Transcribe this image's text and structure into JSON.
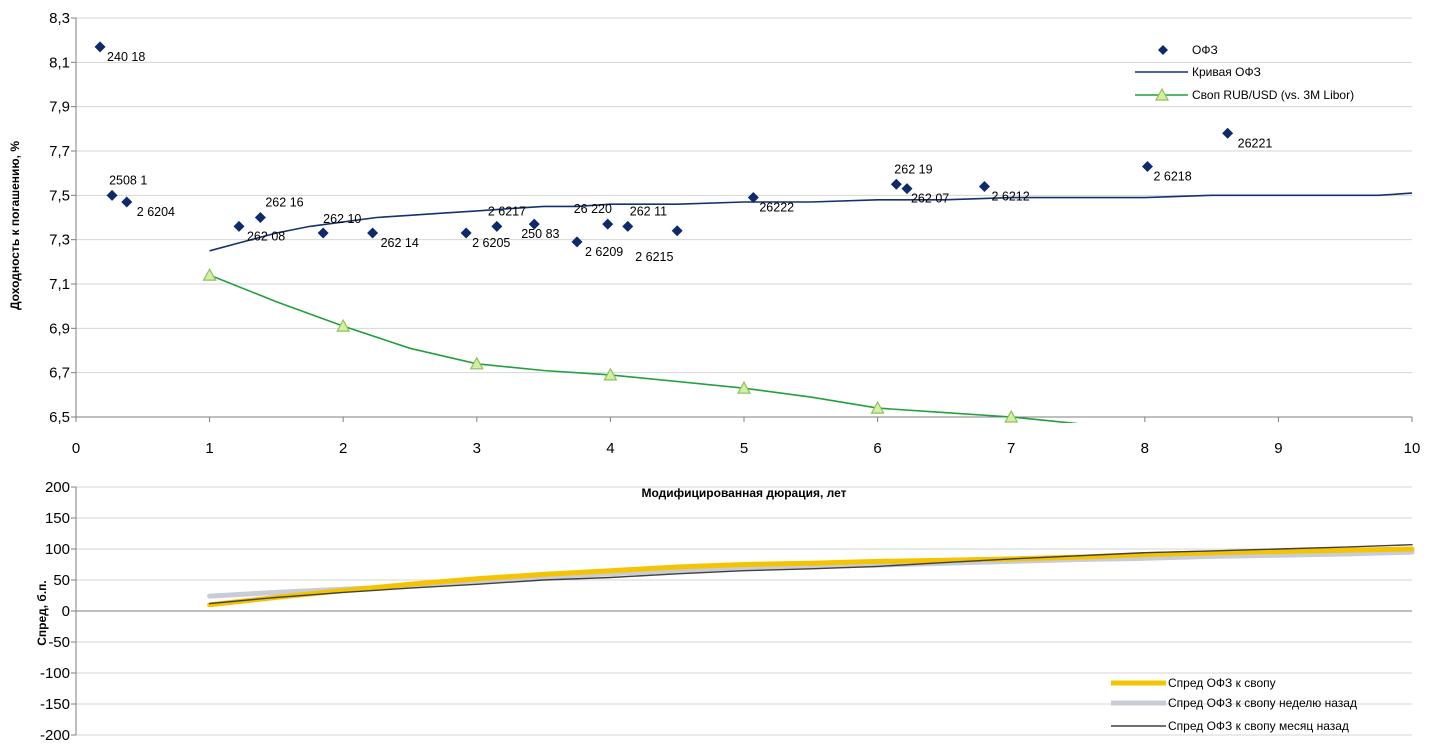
{
  "chart_data": [
    {
      "type": "scatter",
      "title": "",
      "xlabel": "Модифицированная дюрация, лет",
      "ylabel": "Доходность к погашению, %",
      "xlim": [
        0,
        10
      ],
      "ylim": [
        6.5,
        8.3
      ],
      "x_ticks": [
        "0",
        "1",
        "2",
        "3",
        "4",
        "5",
        "6",
        "7",
        "8",
        "9",
        "10"
      ],
      "y_ticks": [
        "6,5",
        "6,7",
        "6,9",
        "7,1",
        "7,3",
        "7,5",
        "7,7",
        "7,9",
        "8,1",
        "8,3"
      ],
      "grid": true,
      "legend_position": "top-right",
      "series": [
        {
          "name": "ОФЗ",
          "kind": "markers",
          "marker": "diamond",
          "color": "#0e2a6b",
          "points": [
            {
              "x": 0.18,
              "y": 8.17,
              "label": "240 18"
            },
            {
              "x": 0.27,
              "y": 7.5,
              "label": "2508 1"
            },
            {
              "x": 0.38,
              "y": 7.47,
              "label": "2 6204"
            },
            {
              "x": 1.22,
              "y": 7.36,
              "label": "262 08"
            },
            {
              "x": 1.38,
              "y": 7.4,
              "label": "262 16"
            },
            {
              "x": 1.85,
              "y": 7.33,
              "label": "262 10"
            },
            {
              "x": 2.22,
              "y": 7.33,
              "label": "262 14"
            },
            {
              "x": 2.92,
              "y": 7.33,
              "label": "2 6205"
            },
            {
              "x": 3.15,
              "y": 7.36,
              "label": "2 6217"
            },
            {
              "x": 3.43,
              "y": 7.37,
              "label": "250 83"
            },
            {
              "x": 3.75,
              "y": 7.29,
              "label": "2 6209"
            },
            {
              "x": 3.98,
              "y": 7.37,
              "label": "26 220"
            },
            {
              "x": 4.13,
              "y": 7.36,
              "label": "262 11"
            },
            {
              "x": 4.5,
              "y": 7.34,
              "label": "2 6215"
            },
            {
              "x": 5.07,
              "y": 7.49,
              "label": "26222"
            },
            {
              "x": 6.14,
              "y": 7.55,
              "label": "262 19"
            },
            {
              "x": 6.22,
              "y": 7.53,
              "label": "262 07"
            },
            {
              "x": 6.8,
              "y": 7.54,
              "label": "2 6212"
            },
            {
              "x": 8.02,
              "y": 7.63,
              "label": "2 6218"
            },
            {
              "x": 8.62,
              "y": 7.78,
              "label": "26221"
            }
          ]
        },
        {
          "name": "Кривая ОФЗ",
          "kind": "line",
          "color": "#17306e",
          "x": [
            1.0,
            1.25,
            1.5,
            1.75,
            2.0,
            2.25,
            2.5,
            2.75,
            3.0,
            3.25,
            3.5,
            3.75,
            4.0,
            4.5,
            5.0,
            5.5,
            6.0,
            6.5,
            7.0,
            7.5,
            8.0,
            8.5,
            9.0,
            9.5,
            9.75,
            10.0
          ],
          "y": [
            7.25,
            7.29,
            7.33,
            7.36,
            7.38,
            7.4,
            7.41,
            7.42,
            7.43,
            7.44,
            7.45,
            7.45,
            7.46,
            7.46,
            7.47,
            7.47,
            7.48,
            7.48,
            7.49,
            7.49,
            7.49,
            7.5,
            7.5,
            7.5,
            7.5,
            7.51
          ]
        },
        {
          "name": "Своп RUB/USD (vs. 3M Libor)",
          "kind": "line",
          "color": "#21a03c",
          "marker": "triangle",
          "marker_fill": "#d6eea0",
          "x": [
            1.0,
            1.5,
            2.0,
            2.5,
            3.0,
            3.5,
            4.0,
            4.5,
            5.0,
            5.5,
            6.0,
            6.5,
            7.0,
            7.5
          ],
          "y": [
            7.14,
            7.02,
            6.91,
            6.81,
            6.74,
            6.71,
            6.69,
            6.66,
            6.63,
            6.59,
            6.54,
            6.52,
            6.5,
            6.47
          ],
          "marker_x": [
            1,
            2,
            3,
            4,
            5,
            6,
            7
          ]
        }
      ]
    },
    {
      "type": "line",
      "title": "",
      "xlabel": "",
      "ylabel": "Спред, б.п.",
      "ylim": [
        -200,
        200
      ],
      "y_ticks": [
        "200",
        "150",
        "100",
        "50",
        "0",
        "-50",
        "-100",
        "-150",
        "-200"
      ],
      "grid": true,
      "legend_position": "bottom-right",
      "x": [
        1,
        1.5,
        2,
        2.5,
        3,
        3.5,
        4,
        4.5,
        5,
        5.5,
        6,
        6.5,
        7,
        7.5,
        8,
        8.5,
        9,
        9.5,
        10
      ],
      "series": [
        {
          "name": "Спред ОФЗ к свопу",
          "color": "#f5c400",
          "values": [
            10,
            22,
            33,
            43,
            52,
            59,
            65,
            71,
            75,
            77,
            80,
            82,
            84,
            87,
            91,
            94,
            96,
            98,
            100
          ]
        },
        {
          "name": "Спред ОФЗ к свопу неделю назад",
          "color": "#c8ccd6",
          "values": [
            24,
            30,
            35,
            40,
            48,
            55,
            60,
            65,
            68,
            72,
            74,
            77,
            80,
            83,
            85,
            88,
            90,
            92,
            95
          ]
        },
        {
          "name": "Спред ОФЗ к свопу месяц назад",
          "color": "#404040",
          "values": [
            12,
            22,
            30,
            37,
            43,
            50,
            54,
            60,
            65,
            68,
            72,
            78,
            84,
            89,
            94,
            97,
            100,
            103,
            107
          ]
        }
      ]
    }
  ]
}
